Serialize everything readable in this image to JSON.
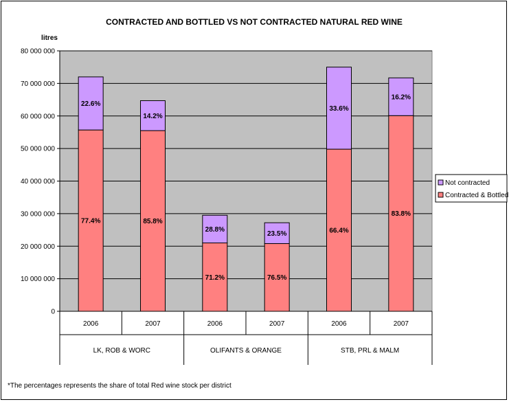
{
  "chart_data": {
    "type": "bar",
    "stacked": true,
    "title": "CONTRACTED AND BOTTLED VS NOT CONTRACTED NATURAL RED WINE",
    "ylabel": "litres",
    "xlabel": "",
    "ylim": [
      0,
      80000000
    ],
    "yticks": [
      0,
      10000000,
      20000000,
      30000000,
      40000000,
      50000000,
      60000000,
      70000000,
      80000000
    ],
    "ytick_labels": [
      "0",
      "10 000 000",
      "20 000 000",
      "30 000 000",
      "40 000 000",
      "50 000 000",
      "60 000 000",
      "70 000 000",
      "80 000 000"
    ],
    "groups": [
      "LK, ROB & WORC",
      "OLIFANTS & ORANGE",
      "STB, PRL & MALM"
    ],
    "categories": [
      "2006",
      "2007",
      "2006",
      "2007",
      "2006",
      "2007"
    ],
    "series": [
      {
        "name": "Contracted & Bottled",
        "color": "#ff8080",
        "values": [
          55700000,
          55500000,
          21000000,
          20800000,
          49800000,
          60100000
        ],
        "labels": [
          "77.4%",
          "85.8%",
          "71.2%",
          "76.5%",
          "66.4%",
          "83.8%"
        ]
      },
      {
        "name": "Not contracted",
        "color": "#cc99ff",
        "values": [
          16300000,
          9200000,
          8500000,
          6400000,
          25200000,
          11600000
        ],
        "labels": [
          "22.6%",
          "14.2%",
          "28.8%",
          "23.5%",
          "33.6%",
          "16.2%"
        ]
      }
    ],
    "legend_order": [
      "Not contracted",
      "Contracted & Bottled"
    ],
    "legend_position": "right",
    "grid": true,
    "plot_background": "#c0c0c0"
  },
  "footnote": "*The percentages represents the share of total Red wine stock per district"
}
